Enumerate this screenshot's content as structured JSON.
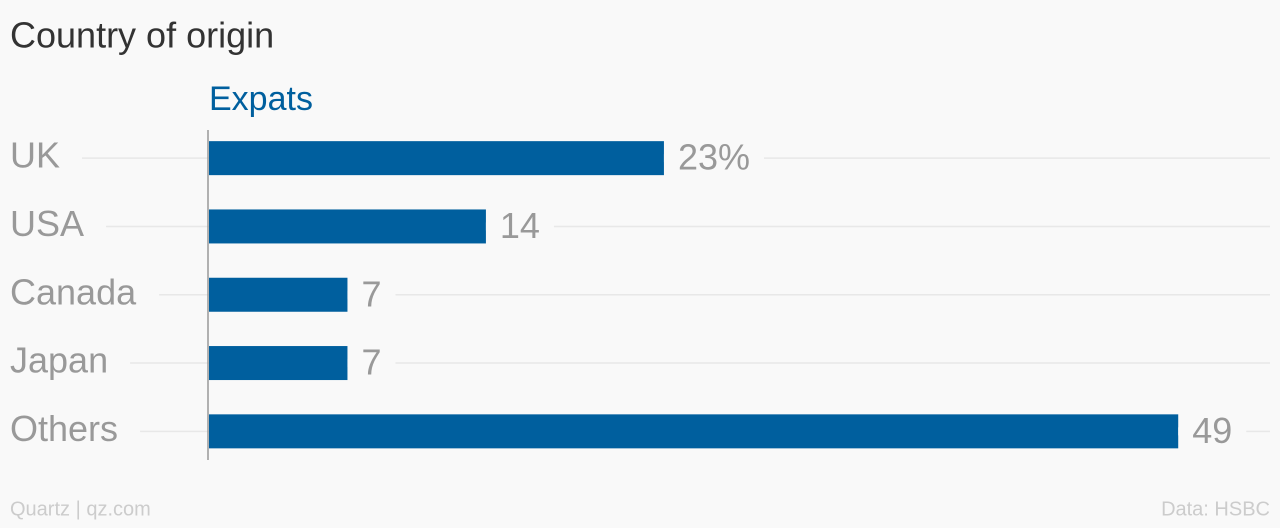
{
  "chart_data": {
    "type": "bar",
    "orientation": "horizontal",
    "title": "Country of origin",
    "categories": [
      "UK",
      "USA",
      "Canada",
      "Japan",
      "Others"
    ],
    "series": [
      {
        "name": "Expats",
        "color": "#005f9e",
        "values": [
          23,
          14,
          7,
          7,
          49
        ],
        "value_labels": [
          "23%",
          "14",
          "7",
          "7",
          "49"
        ]
      }
    ],
    "xlim": [
      0,
      50
    ],
    "credit": "Quartz | qz.com",
    "source": "Data: HSBC"
  }
}
